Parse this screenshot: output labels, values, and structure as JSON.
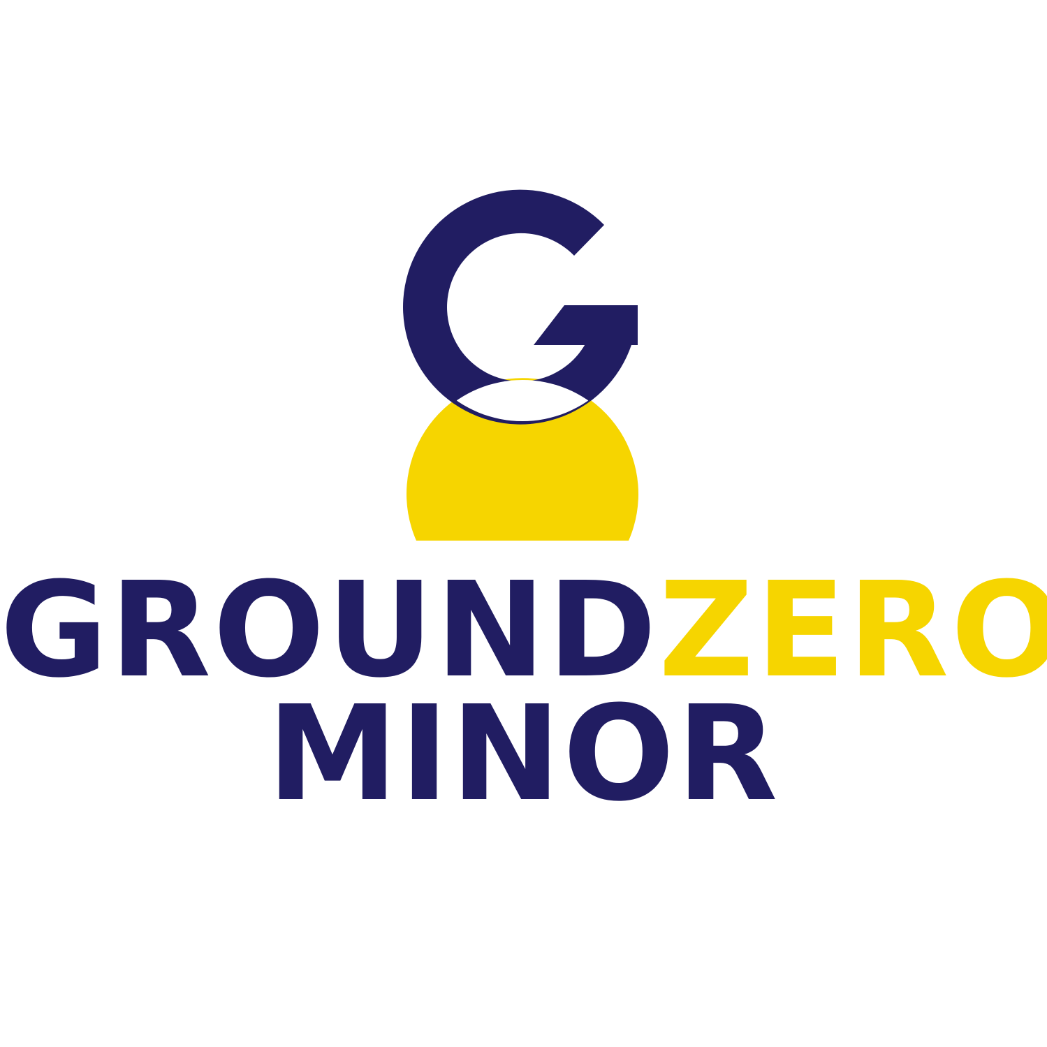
{
  "brand": {
    "line1_part1": "GROUND",
    "line1_part2": "ZERO",
    "line2": "MINOR"
  },
  "icons": {
    "mark": "g-person-logo-icon"
  },
  "colors": {
    "navy": "#211d62",
    "yellow": "#f6d500",
    "background": "#ffffff"
  }
}
